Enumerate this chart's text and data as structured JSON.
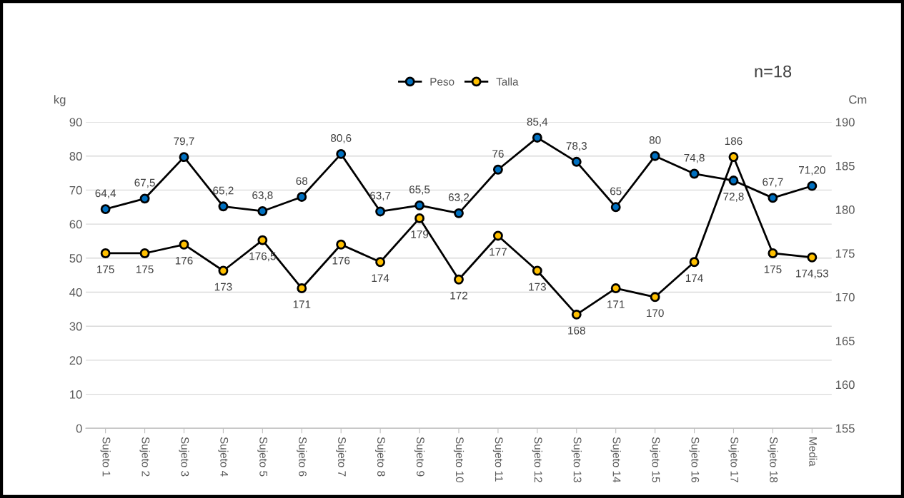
{
  "chart_data": {
    "type": "line",
    "categories": [
      "Sujeto 1",
      "Sujeto 2",
      "Sujeto 3",
      "Sujeto 4",
      "Sujeto 5",
      "Sujeto 6",
      "Sujeto 7",
      "Sujeto 8",
      "Sujeto 9",
      "Sujeto 10",
      "Sujeto 11",
      "Sujeto 12",
      "Sujeto 13",
      "Sujeto 14",
      "Sujeto 15",
      "Sujeto 16",
      "Sujeto 17",
      "Sujeto 18",
      "Media"
    ],
    "series": [
      {
        "name": "Peso",
        "color": "#0070c0",
        "values": [
          64.4,
          67.5,
          79.7,
          65.2,
          63.8,
          68,
          80.6,
          63.7,
          65.5,
          63.2,
          76,
          85.4,
          78.3,
          65,
          80,
          74.8,
          72.8,
          67.7,
          71.2
        ],
        "value_labels": [
          "64,4",
          "67,5",
          "79,7",
          "65,2",
          "63,8",
          "68",
          "80,6",
          "63,7",
          "65,5",
          "63,2",
          "76",
          "85,4",
          "78,3",
          "65",
          "80",
          "74,8",
          "72,8",
          "67,7",
          "71,20"
        ]
      },
      {
        "name": "Talla",
        "color": "#ffc000",
        "axis": "y2",
        "values": [
          175,
          175,
          176,
          173,
          176.5,
          171,
          176,
          174,
          179,
          172,
          177,
          173,
          168,
          171,
          170,
          174,
          186,
          175,
          174.53
        ],
        "value_labels": [
          "175",
          "175",
          "176",
          "173",
          "176,5",
          "171",
          "176",
          "174",
          "179",
          "172",
          "177",
          "173",
          "168",
          "171",
          "170",
          "174",
          "186",
          "175",
          "174,53"
        ]
      }
    ],
    "ylabel": "kg",
    "y2label": "Cm",
    "ylim": [
      0,
      90
    ],
    "yticks": [
      0,
      10,
      20,
      30,
      40,
      50,
      60,
      70,
      80,
      90
    ],
    "y2lim": [
      155,
      190
    ],
    "y2ticks": [
      155,
      160,
      165,
      170,
      175,
      180,
      185,
      190
    ],
    "annotations": [
      "n=18"
    ],
    "grid": "y",
    "legend": "top",
    "marker": "circle",
    "line_style": "solid"
  }
}
